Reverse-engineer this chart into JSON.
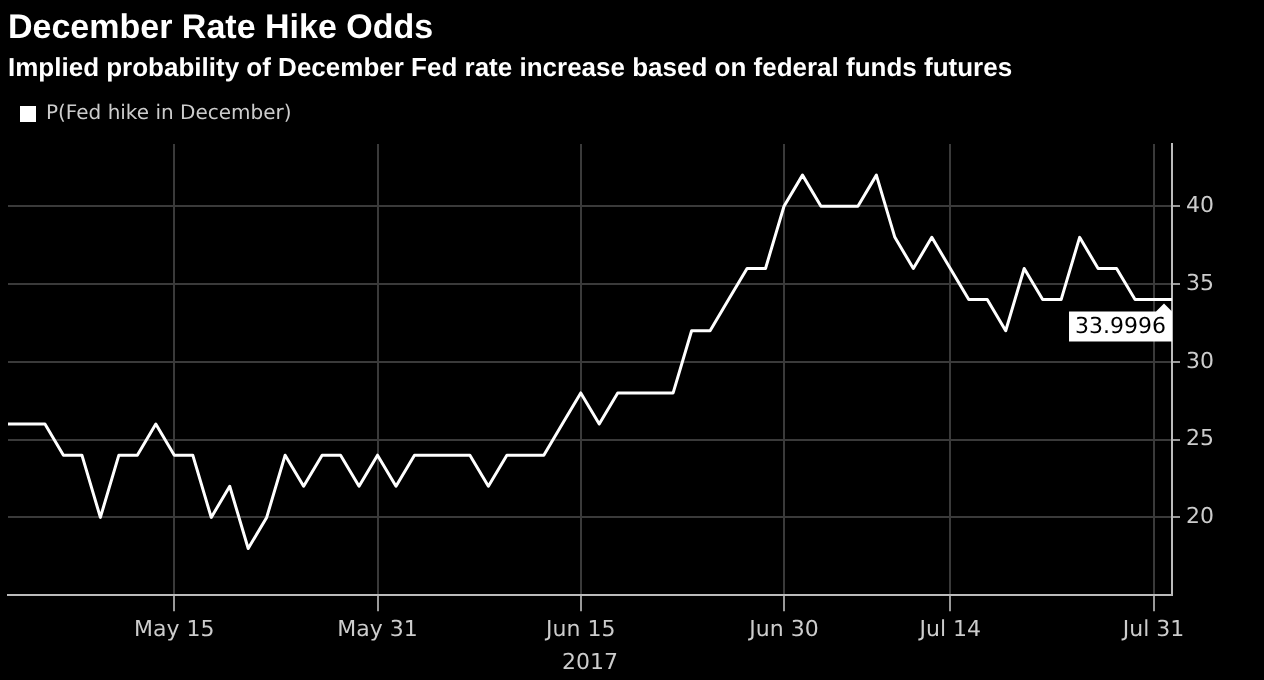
{
  "chart_data": {
    "type": "line",
    "title": "December Rate Hike Odds",
    "subtitle": "Implied probability of December Fed rate increase based on federal funds futures",
    "xlabel": "2017",
    "categories": [
      null,
      null,
      null,
      null,
      null,
      null,
      null,
      null,
      null,
      "May 15",
      null,
      null,
      null,
      null,
      null,
      null,
      null,
      null,
      null,
      null,
      "May 31",
      null,
      null,
      null,
      null,
      null,
      null,
      null,
      null,
      null,
      null,
      "Jun 15",
      null,
      null,
      null,
      null,
      null,
      null,
      null,
      null,
      null,
      null,
      "Jun 30",
      null,
      null,
      null,
      null,
      null,
      null,
      null,
      null,
      "Jul 14",
      null,
      null,
      null,
      null,
      null,
      null,
      null,
      null,
      null,
      null,
      "Jul 31",
      null
    ],
    "series": [
      {
        "name": "P(Fed hike in December)",
        "color": "#ffffff",
        "values": [
          26,
          26,
          26,
          24,
          24,
          20,
          24,
          24,
          26,
          24,
          24,
          20,
          22,
          18,
          20,
          24,
          22,
          24,
          24,
          22,
          24,
          22,
          24,
          24,
          24,
          24,
          22,
          24,
          24,
          24,
          26,
          28,
          26,
          28,
          28,
          28,
          28,
          32,
          32,
          34,
          36,
          36,
          40,
          42,
          40,
          40,
          40,
          42,
          38,
          36,
          38,
          36,
          34,
          34,
          32,
          36,
          34,
          34,
          38,
          36,
          36,
          34,
          34,
          33.9996
        ],
        "value_labels": [
          null,
          null,
          null,
          null,
          null,
          null,
          null,
          null,
          null,
          null,
          null,
          null,
          null,
          null,
          null,
          null,
          null,
          null,
          null,
          null,
          null,
          null,
          null,
          null,
          null,
          null,
          null,
          null,
          null,
          null,
          null,
          null,
          null,
          null,
          null,
          null,
          null,
          null,
          null,
          null,
          null,
          null,
          null,
          null,
          null,
          null,
          null,
          null,
          null,
          null,
          null,
          null,
          null,
          null,
          null,
          null,
          null,
          null,
          null,
          null,
          null,
          null,
          null,
          "33.9996"
        ]
      }
    ],
    "ylim": [
      15,
      44
    ],
    "yticks": [
      20,
      25,
      30,
      35,
      40
    ],
    "grid": true,
    "legend": "top left",
    "marker": "none",
    "line_style": "solid"
  }
}
